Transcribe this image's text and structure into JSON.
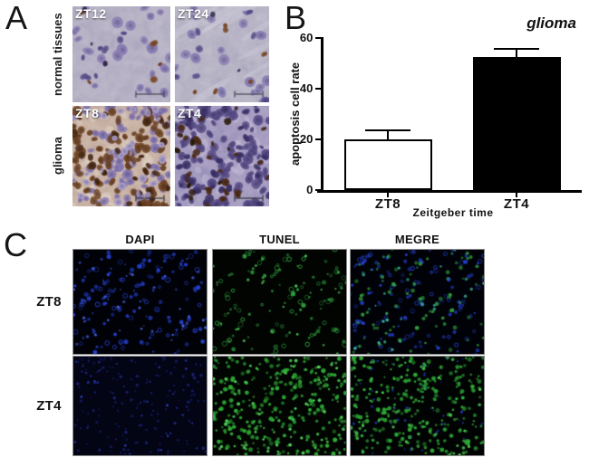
{
  "panels": {
    "A": {
      "letter": "A",
      "row_labels": [
        "normal tissues",
        "glioma"
      ],
      "images": [
        {
          "tag": "ZT12"
        },
        {
          "tag": "ZT24"
        },
        {
          "tag": "ZT8"
        },
        {
          "tag": "ZT4"
        }
      ]
    },
    "B": {
      "letter": "B"
    },
    "C": {
      "letter": "C",
      "col_headers": [
        "DAPI",
        "TUNEL",
        "MEGRE"
      ],
      "row_labels": [
        "ZT8",
        "ZT4"
      ]
    }
  },
  "chart_data": {
    "type": "bar",
    "title": "glioma",
    "categories": [
      "ZT8",
      "ZT4"
    ],
    "values": [
      20,
      52.5
    ],
    "errors": [
      3.5,
      3.2
    ],
    "bar_fill": [
      "#ffffff",
      "#000000"
    ],
    "bar_edge": "#000000",
    "xlabel": "Zeitgeber time",
    "ylabel": "apoptosis cell rate",
    "ylim": [
      0,
      60
    ],
    "yticks": [
      0,
      20,
      40,
      60
    ],
    "grid": false,
    "legend": "none"
  },
  "micrographs": {
    "a_zt12": {
      "kind": "histology",
      "seed": 11,
      "bg": "#b7b3c5",
      "blobs": [
        "#c7c3d3",
        "#a8a4b9"
      ],
      "cells": [
        {
          "color": "#8a7eb4",
          "count": 24,
          "rmin": 3.5,
          "rmax": 6.5
        },
        {
          "color": "#5d5190",
          "count": 8,
          "rmin": 3,
          "rmax": 5
        },
        {
          "color": "#7d4b27",
          "count": 5,
          "rmin": 2.5,
          "rmax": 4.5
        },
        {
          "color": "#332a50",
          "count": 3,
          "rmin": 2,
          "rmax": 3.5
        }
      ],
      "scalebar": "#4a4a5a"
    },
    "a_zt24": {
      "kind": "histology",
      "seed": 22,
      "bg": "#b9b5c7",
      "blobs": [
        "#c9c5d5",
        "#aaa6bb"
      ],
      "streaks": {
        "color": "#d5d1e0",
        "count": 9
      },
      "cells": [
        {
          "color": "#8a7eb4",
          "count": 20,
          "rmin": 3.5,
          "rmax": 6.5
        },
        {
          "color": "#5d5190",
          "count": 7,
          "rmin": 3,
          "rmax": 5
        },
        {
          "color": "#7d4b27",
          "count": 6,
          "rmin": 2.5,
          "rmax": 4.5
        },
        {
          "color": "#332a50",
          "count": 2,
          "rmin": 2,
          "rmax": 3.5
        }
      ],
      "scalebar": "#4a4a5a"
    },
    "a_zt8": {
      "kind": "histology",
      "seed": 33,
      "bg": "#c9b3a5",
      "blobs": [
        "#dbcabc",
        "#b9a294"
      ],
      "patches": {
        "color": "#e6dacd",
        "count": 40
      },
      "cells": [
        {
          "color": "#8679b3",
          "count": 75,
          "rmin": 3,
          "rmax": 6
        },
        {
          "color": "#6e4425",
          "count": 78,
          "rmin": 3,
          "rmax": 6
        },
        {
          "color": "#492a15",
          "count": 28,
          "rmin": 2.5,
          "rmax": 5
        },
        {
          "color": "#a79bc8",
          "count": 30,
          "rmin": 2.5,
          "rmax": 5
        }
      ],
      "scalebar": "#3a3a42"
    },
    "a_zt4": {
      "kind": "histology",
      "seed": 44,
      "bg": "#a79ec1",
      "blobs": [
        "#b9b1cf",
        "#9289b2"
      ],
      "patches": {
        "color": "#cfc8df",
        "count": 30
      },
      "cells": [
        {
          "color": "#584c87",
          "count": 105,
          "rmin": 3,
          "rmax": 6
        },
        {
          "color": "#3e346b",
          "count": 42,
          "rmin": 2.5,
          "rmax": 5
        },
        {
          "color": "#4e2d1a",
          "count": 26,
          "rmin": 2.5,
          "rmax": 5
        },
        {
          "color": "#2d1c0e",
          "count": 10,
          "rmin": 2,
          "rmax": 4
        }
      ],
      "scalebar": "#3a3a42"
    },
    "c_zt8_dapi": {
      "kind": "fluor",
      "seed": 101,
      "bg": "#010208",
      "diagonal": true,
      "dots": [
        {
          "color": "#2540cf",
          "count": 150,
          "rmin": 1.2,
          "rmax": 2.6,
          "ring": true
        },
        {
          "color": "#4a66ee",
          "count": 55,
          "rmin": 0.8,
          "rmax": 1.8
        }
      ]
    },
    "c_zt8_tunel": {
      "kind": "fluor",
      "seed": 102,
      "bg": "#010401",
      "diagonal": true,
      "dots": [
        {
          "color": "#2f9c3d",
          "count": 105,
          "rmin": 1.2,
          "rmax": 2.6,
          "ring": true
        },
        {
          "color": "#4fc857",
          "count": 40,
          "rmin": 0.8,
          "rmax": 1.8
        }
      ]
    },
    "c_zt8_megre": {
      "kind": "fluor",
      "seed": 103,
      "bg": "#010207",
      "diagonal": true,
      "dots": [
        {
          "color": "#2540cf",
          "count": 130,
          "rmin": 1.2,
          "rmax": 2.4,
          "ring": true
        },
        {
          "color": "#2f9c3d",
          "count": 85,
          "rmin": 1.2,
          "rmax": 2.4
        },
        {
          "color": "#3cbaa2",
          "count": 35,
          "rmin": 1,
          "rmax": 2
        }
      ]
    },
    "c_zt4_dapi": {
      "kind": "fluor",
      "seed": 104,
      "bg": "#030414",
      "dots": [
        {
          "color": "#1a2478",
          "count": 150,
          "rmin": 0.8,
          "rmax": 1.8
        },
        {
          "color": "#2b3cae",
          "count": 30,
          "rmin": 0.8,
          "rmax": 1.6
        }
      ]
    },
    "c_zt4_tunel": {
      "kind": "fluor",
      "seed": 105,
      "bg": "#010401",
      "dots": [
        {
          "color": "#2fad37",
          "count": 250,
          "rmin": 1.2,
          "rmax": 2.6
        },
        {
          "color": "#58d65f",
          "count": 110,
          "rmin": 1,
          "rmax": 2
        }
      ]
    },
    "c_zt4_megre": {
      "kind": "fluor",
      "seed": 106,
      "bg": "#010303",
      "dots": [
        {
          "color": "#2fad37",
          "count": 225,
          "rmin": 1.2,
          "rmax": 2.5
        },
        {
          "color": "#4ccf53",
          "count": 90,
          "rmin": 1,
          "rmax": 2
        },
        {
          "color": "#2336b0",
          "count": 50,
          "rmin": 0.8,
          "rmax": 1.6
        }
      ]
    }
  }
}
